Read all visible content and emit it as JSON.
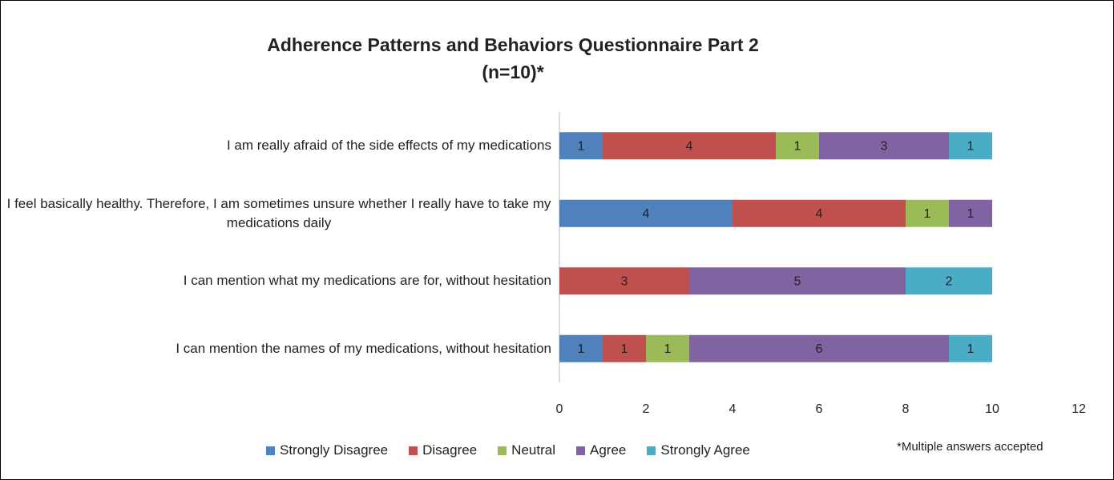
{
  "chart_data": {
    "type": "stacked-bar-horizontal",
    "title": "Adherence Patterns and Behaviors Questionnaire Part 2",
    "subtitle": "(n=10)*",
    "annotation": "*Multiple answers accepted",
    "categories": [
      "I am really afraid of the side effects of my medications",
      "I feel basically healthy. Therefore, I am sometimes unsure whether I really have to take my medications daily",
      "I can mention what my medications are for, without hesitation",
      "I can mention the names of my medications, without hesitation"
    ],
    "series": [
      {
        "name": "Strongly Disagree",
        "color": "#4f81bd",
        "values": [
          1,
          4,
          null,
          1
        ]
      },
      {
        "name": "Disagree",
        "color": "#c0504d",
        "values": [
          4,
          4,
          3,
          1
        ]
      },
      {
        "name": "Neutral",
        "color": "#9bbb59",
        "values": [
          1,
          1,
          null,
          1
        ]
      },
      {
        "name": "Agree",
        "color": "#8064a2",
        "values": [
          3,
          1,
          5,
          6
        ]
      },
      {
        "name": "Strongly Agree",
        "color": "#4bacc6",
        "values": [
          1,
          null,
          2,
          1
        ]
      }
    ],
    "xlim": [
      0,
      12
    ],
    "xticks": [
      0,
      2,
      4,
      6,
      8,
      10,
      12
    ],
    "grid": false,
    "legend": "bottom"
  }
}
